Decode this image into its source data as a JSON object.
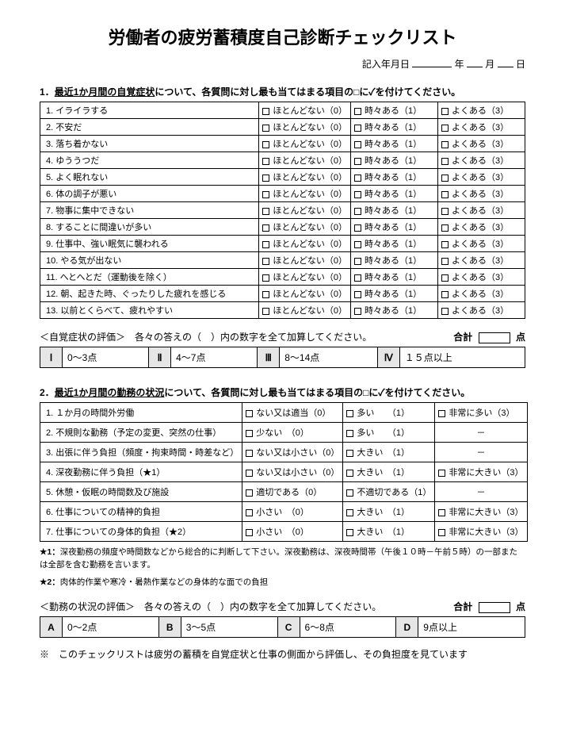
{
  "title": "労働者の疲労蓄積度自己診断チェックリスト",
  "dateline": {
    "prefix": "記入年月日",
    "y": "年",
    "m": "月",
    "d": "日"
  },
  "sec1": {
    "heading_num": "1．",
    "heading_u": "最近1か月間の自覚症状",
    "heading_tail": "について、各質問に対し最も当てはまる項目の□に✓を付けてください。",
    "opt1": "ほとんどない（0）",
    "opt2": "時々ある（1）",
    "opt3": "よくある（3）",
    "rows": [
      {
        "n": "1.",
        "q": "イライラする"
      },
      {
        "n": "2.",
        "q": "不安だ"
      },
      {
        "n": "3.",
        "q": "落ち着かない"
      },
      {
        "n": "4.",
        "q": "ゆううつだ"
      },
      {
        "n": "5.",
        "q": "よく眠れない"
      },
      {
        "n": "6.",
        "q": "体の調子が悪い"
      },
      {
        "n": "7.",
        "q": "物事に集中できない"
      },
      {
        "n": "8.",
        "q": "することに間違いが多い"
      },
      {
        "n": "9.",
        "q": "仕事中、強い眠気に襲われる"
      },
      {
        "n": "10.",
        "q": "やる気が出ない"
      },
      {
        "n": "11.",
        "q": "へとへとだ（運動後を除く）"
      },
      {
        "n": "12.",
        "q": "朝、起きた時、ぐったりした疲れを感じる"
      },
      {
        "n": "13.",
        "q": "以前とくらべて、疲れやすい"
      }
    ],
    "eval_label": "＜自覚症状の評価＞　各々の答えの（　）内の数字を全て加算してください。",
    "eval_sum": "合計",
    "eval_unit": "点",
    "scale": [
      {
        "g": "Ⅰ",
        "r": "0～3点"
      },
      {
        "g": "Ⅱ",
        "r": "4～7点"
      },
      {
        "g": "Ⅲ",
        "r": "8～14点"
      },
      {
        "g": "Ⅳ",
        "r": "１５点以上"
      }
    ]
  },
  "sec2": {
    "heading_num": "2．",
    "heading_u": "最近1か月間の勤務の状況",
    "heading_tail": "について、各質問に対し最も当てはまる項目の□に✓を付けてください。",
    "rows": [
      {
        "n": "1.",
        "q": "１か月の時間外労働",
        "a": "ない又は適当（0）",
        "b": "多い　　（1）",
        "c": "非常に多い（3）"
      },
      {
        "n": "2.",
        "q": "不規則な勤務（予定の変更、突然の仕事）",
        "a": "少ない　（0）",
        "b": "多い　　（1）",
        "c": "－"
      },
      {
        "n": "3.",
        "q": "出張に伴う負担（頻度・拘束時間・時差など）",
        "a": "ない又は小さい（0）",
        "b": "大きい　（1）",
        "c": "－"
      },
      {
        "n": "4.",
        "q": "深夜勤務に伴う負担（★1）",
        "a": "ない又は小さい（0）",
        "b": "大きい　（1）",
        "c": "非常に大きい（3）"
      },
      {
        "n": "5.",
        "q": "休憩・仮眠の時間数及び施設",
        "a": "適切である（0）",
        "b": "不適切である（1）",
        "c": "－"
      },
      {
        "n": "6.",
        "q": "仕事についての精神的負担",
        "a": "小さい　（0）",
        "b": "大きい　（1）",
        "c": "非常に大きい（3）"
      },
      {
        "n": "7.",
        "q": "仕事についての身体的負担（★2）",
        "a": "小さい　（0）",
        "b": "大きい　（1）",
        "c": "非常に大きい（3）"
      }
    ],
    "note1_star": "★1：",
    "note1": "深夜勤務の頻度や時間数などから総合的に判断して下さい。深夜勤務は、深夜時間帯（午後１０時－午前５時）の一部または全部を含む勤務を言います。",
    "note2_star": "★2：",
    "note2": "肉体的作業や寒冷・暑熱作業などの身体的な面での負担",
    "eval_label": "＜勤務の状況の評価＞　各々の答えの（　）内の数字を全て加算してください。",
    "eval_sum": "合計",
    "eval_unit": "点",
    "scale": [
      {
        "g": "A",
        "r": "0～2点"
      },
      {
        "g": "B",
        "r": "3～5点"
      },
      {
        "g": "C",
        "r": "6～8点"
      },
      {
        "g": "D",
        "r": "9点以上"
      }
    ]
  },
  "footnote": "※　このチェックリストは疲労の蓄積を自覚症状と仕事の側面から評価し、その負担度を見ています"
}
